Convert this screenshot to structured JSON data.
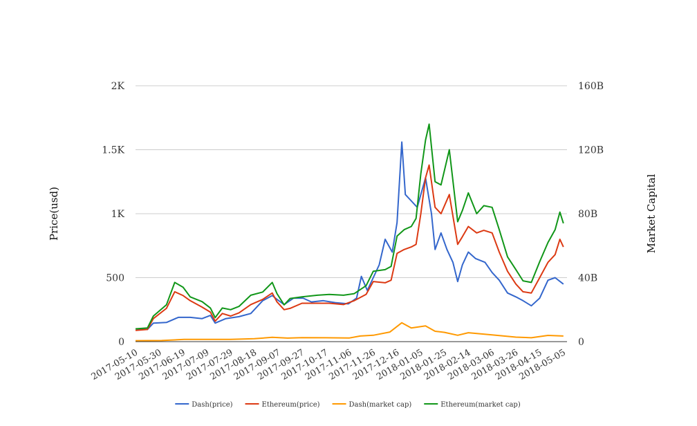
{
  "chart_data": {
    "type": "line",
    "title": "",
    "xlabel": "",
    "ylabel": "Price(usd)",
    "y2label": "Market Capital",
    "grid": true,
    "legend_position": "bottom",
    "xlim": [
      "2017-05-10",
      "2018-05-08"
    ],
    "ylim": [
      0,
      2000
    ],
    "y2lim": [
      0,
      160000000000
    ],
    "x_ticks": [
      "2017-05-10",
      "2017-05-30",
      "2017-06-19",
      "2017-07-09",
      "2017-07-29",
      "2017-08-18",
      "2017-09-07",
      "2017-09-27",
      "2017-10-17",
      "2017-11-06",
      "2017-11-26",
      "2017-12-16",
      "2018-01-05",
      "2018-01-25",
      "2018-02-14",
      "2018-03-06",
      "2018-03-26",
      "2018-04-15",
      "2018-05-05"
    ],
    "y_ticks": [
      {
        "value": 0,
        "label": "0"
      },
      {
        "value": 500,
        "label": "500"
      },
      {
        "value": 1000,
        "label": "1K"
      },
      {
        "value": 1500,
        "label": "1.5K"
      },
      {
        "value": 2000,
        "label": "2K"
      }
    ],
    "y2_ticks": [
      {
        "value": 0,
        "label": "0"
      },
      {
        "value": 40000000000,
        "label": "40B"
      },
      {
        "value": 80000000000,
        "label": "80B"
      },
      {
        "value": 120000000000,
        "label": "120B"
      },
      {
        "value": 160000000000,
        "label": "160B"
      }
    ],
    "series": [
      {
        "name": "Dash(price)",
        "axis": "left",
        "color": "#3366cc",
        "points": [
          [
            "2017-05-10",
            100
          ],
          [
            "2017-05-20",
            95
          ],
          [
            "2017-05-25",
            145
          ],
          [
            "2017-06-05",
            150
          ],
          [
            "2017-06-15",
            190
          ],
          [
            "2017-06-25",
            190
          ],
          [
            "2017-07-05",
            180
          ],
          [
            "2017-07-12",
            205
          ],
          [
            "2017-07-16",
            145
          ],
          [
            "2017-07-25",
            180
          ],
          [
            "2017-08-05",
            195
          ],
          [
            "2017-08-15",
            220
          ],
          [
            "2017-08-25",
            320
          ],
          [
            "2017-09-02",
            360
          ],
          [
            "2017-09-06",
            330
          ],
          [
            "2017-09-12",
            290
          ],
          [
            "2017-09-20",
            340
          ],
          [
            "2017-09-28",
            340
          ],
          [
            "2017-10-05",
            310
          ],
          [
            "2017-10-15",
            320
          ],
          [
            "2017-10-25",
            305
          ],
          [
            "2017-11-05",
            295
          ],
          [
            "2017-11-12",
            340
          ],
          [
            "2017-11-16",
            510
          ],
          [
            "2017-11-21",
            400
          ],
          [
            "2017-11-26",
            500
          ],
          [
            "2017-12-01",
            600
          ],
          [
            "2017-12-06",
            800
          ],
          [
            "2017-12-12",
            700
          ],
          [
            "2017-12-16",
            930
          ],
          [
            "2017-12-20",
            1560
          ],
          [
            "2017-12-23",
            1150
          ],
          [
            "2017-12-28",
            1100
          ],
          [
            "2018-01-02",
            1050
          ],
          [
            "2018-01-05",
            1150
          ],
          [
            "2018-01-09",
            1280
          ],
          [
            "2018-01-14",
            1000
          ],
          [
            "2018-01-17",
            720
          ],
          [
            "2018-01-22",
            850
          ],
          [
            "2018-01-27",
            720
          ],
          [
            "2018-02-01",
            620
          ],
          [
            "2018-02-05",
            470
          ],
          [
            "2018-02-09",
            600
          ],
          [
            "2018-02-14",
            700
          ],
          [
            "2018-02-20",
            650
          ],
          [
            "2018-02-28",
            620
          ],
          [
            "2018-03-06",
            540
          ],
          [
            "2018-03-12",
            480
          ],
          [
            "2018-03-19",
            380
          ],
          [
            "2018-03-26",
            350
          ],
          [
            "2018-04-01",
            320
          ],
          [
            "2018-04-08",
            280
          ],
          [
            "2018-04-15",
            340
          ],
          [
            "2018-04-22",
            480
          ],
          [
            "2018-04-28",
            500
          ],
          [
            "2018-05-05",
            450
          ]
        ]
      },
      {
        "name": "Ethereum(price)",
        "axis": "left",
        "color": "#dc3912",
        "points": [
          [
            "2017-05-10",
            88
          ],
          [
            "2017-05-20",
            95
          ],
          [
            "2017-05-25",
            180
          ],
          [
            "2017-06-05",
            260
          ],
          [
            "2017-06-12",
            390
          ],
          [
            "2017-06-19",
            360
          ],
          [
            "2017-06-25",
            320
          ],
          [
            "2017-07-05",
            270
          ],
          [
            "2017-07-12",
            230
          ],
          [
            "2017-07-16",
            160
          ],
          [
            "2017-07-22",
            220
          ],
          [
            "2017-07-29",
            200
          ],
          [
            "2017-08-05",
            225
          ],
          [
            "2017-08-15",
            290
          ],
          [
            "2017-08-25",
            330
          ],
          [
            "2017-09-02",
            380
          ],
          [
            "2017-09-06",
            310
          ],
          [
            "2017-09-12",
            250
          ],
          [
            "2017-09-17",
            260
          ],
          [
            "2017-09-27",
            300
          ],
          [
            "2017-10-10",
            300
          ],
          [
            "2017-10-20",
            300
          ],
          [
            "2017-11-01",
            290
          ],
          [
            "2017-11-10",
            320
          ],
          [
            "2017-11-20",
            370
          ],
          [
            "2017-11-26",
            470
          ],
          [
            "2017-12-06",
            460
          ],
          [
            "2017-12-11",
            480
          ],
          [
            "2017-12-16",
            690
          ],
          [
            "2017-12-22",
            720
          ],
          [
            "2017-12-28",
            740
          ],
          [
            "2018-01-01",
            760
          ],
          [
            "2018-01-05",
            1000
          ],
          [
            "2018-01-09",
            1280
          ],
          [
            "2018-01-12",
            1380
          ],
          [
            "2018-01-17",
            1050
          ],
          [
            "2018-01-22",
            1000
          ],
          [
            "2018-01-29",
            1150
          ],
          [
            "2018-02-05",
            760
          ],
          [
            "2018-02-09",
            820
          ],
          [
            "2018-02-14",
            900
          ],
          [
            "2018-02-21",
            850
          ],
          [
            "2018-02-27",
            870
          ],
          [
            "2018-03-06",
            850
          ],
          [
            "2018-03-12",
            700
          ],
          [
            "2018-03-19",
            550
          ],
          [
            "2018-03-26",
            450
          ],
          [
            "2018-04-01",
            390
          ],
          [
            "2018-04-08",
            380
          ],
          [
            "2018-04-15",
            500
          ],
          [
            "2018-04-22",
            620
          ],
          [
            "2018-04-28",
            680
          ],
          [
            "2018-05-02",
            800
          ],
          [
            "2018-05-05",
            740
          ]
        ]
      },
      {
        "name": "Dash(market cap)",
        "axis": "right",
        "color": "#ff9900",
        "points": [
          [
            "2017-05-10",
            600000000
          ],
          [
            "2017-06-01",
            700000000
          ],
          [
            "2017-06-20",
            1400000000
          ],
          [
            "2017-07-10",
            1400000000
          ],
          [
            "2017-07-29",
            1400000000
          ],
          [
            "2017-08-18",
            1800000000
          ],
          [
            "2017-09-02",
            2700000000
          ],
          [
            "2017-09-15",
            2200000000
          ],
          [
            "2017-09-27",
            2500000000
          ],
          [
            "2017-10-17",
            2400000000
          ],
          [
            "2017-11-06",
            2300000000
          ],
          [
            "2017-11-15",
            3500000000
          ],
          [
            "2017-11-26",
            4000000000
          ],
          [
            "2017-12-10",
            6000000000
          ],
          [
            "2017-12-20",
            11800000000
          ],
          [
            "2017-12-28",
            8500000000
          ],
          [
            "2018-01-09",
            9800000000
          ],
          [
            "2018-01-17",
            6500000000
          ],
          [
            "2018-01-25",
            5800000000
          ],
          [
            "2018-02-05",
            4000000000
          ],
          [
            "2018-02-14",
            5600000000
          ],
          [
            "2018-03-06",
            4200000000
          ],
          [
            "2018-03-26",
            2800000000
          ],
          [
            "2018-04-08",
            2400000000
          ],
          [
            "2018-04-22",
            3900000000
          ],
          [
            "2018-05-05",
            3500000000
          ]
        ]
      },
      {
        "name": "Ethereum(market cap)",
        "axis": "right",
        "color": "#109618",
        "points": [
          [
            "2017-05-10",
            8000000000
          ],
          [
            "2017-05-20",
            8500000000
          ],
          [
            "2017-05-25",
            16000000000
          ],
          [
            "2017-06-05",
            23000000000
          ],
          [
            "2017-06-12",
            37000000000
          ],
          [
            "2017-06-19",
            34000000000
          ],
          [
            "2017-06-25",
            28000000000
          ],
          [
            "2017-07-05",
            25000000000
          ],
          [
            "2017-07-12",
            21000000000
          ],
          [
            "2017-07-16",
            15000000000
          ],
          [
            "2017-07-22",
            21000000000
          ],
          [
            "2017-07-29",
            20000000000
          ],
          [
            "2017-08-05",
            22000000000
          ],
          [
            "2017-08-15",
            29000000000
          ],
          [
            "2017-08-25",
            31000000000
          ],
          [
            "2017-09-02",
            37000000000
          ],
          [
            "2017-09-06",
            30000000000
          ],
          [
            "2017-09-12",
            23000000000
          ],
          [
            "2017-09-17",
            27000000000
          ],
          [
            "2017-09-27",
            28000000000
          ],
          [
            "2017-10-10",
            29000000000
          ],
          [
            "2017-10-20",
            29500000000
          ],
          [
            "2017-11-01",
            29000000000
          ],
          [
            "2017-11-10",
            30000000000
          ],
          [
            "2017-11-20",
            35000000000
          ],
          [
            "2017-11-26",
            44000000000
          ],
          [
            "2017-12-06",
            45000000000
          ],
          [
            "2017-12-11",
            47000000000
          ],
          [
            "2017-12-16",
            66000000000
          ],
          [
            "2017-12-22",
            70000000000
          ],
          [
            "2017-12-28",
            72000000000
          ],
          [
            "2018-01-01",
            77000000000
          ],
          [
            "2018-01-05",
            105000000000
          ],
          [
            "2018-01-09",
            126000000000
          ],
          [
            "2018-01-12",
            136000000000
          ],
          [
            "2018-01-17",
            100000000000
          ],
          [
            "2018-01-22",
            98000000000
          ],
          [
            "2018-01-29",
            120000000000
          ],
          [
            "2018-02-05",
            75000000000
          ],
          [
            "2018-02-09",
            82000000000
          ],
          [
            "2018-02-14",
            93000000000
          ],
          [
            "2018-02-21",
            80000000000
          ],
          [
            "2018-02-27",
            85000000000
          ],
          [
            "2018-03-06",
            84000000000
          ],
          [
            "2018-03-12",
            70000000000
          ],
          [
            "2018-03-19",
            53000000000
          ],
          [
            "2018-03-26",
            45000000000
          ],
          [
            "2018-04-01",
            38000000000
          ],
          [
            "2018-04-08",
            37000000000
          ],
          [
            "2018-04-15",
            50000000000
          ],
          [
            "2018-04-22",
            62000000000
          ],
          [
            "2018-04-28",
            70000000000
          ],
          [
            "2018-05-02",
            81000000000
          ],
          [
            "2018-05-05",
            74000000000
          ]
        ]
      }
    ]
  }
}
